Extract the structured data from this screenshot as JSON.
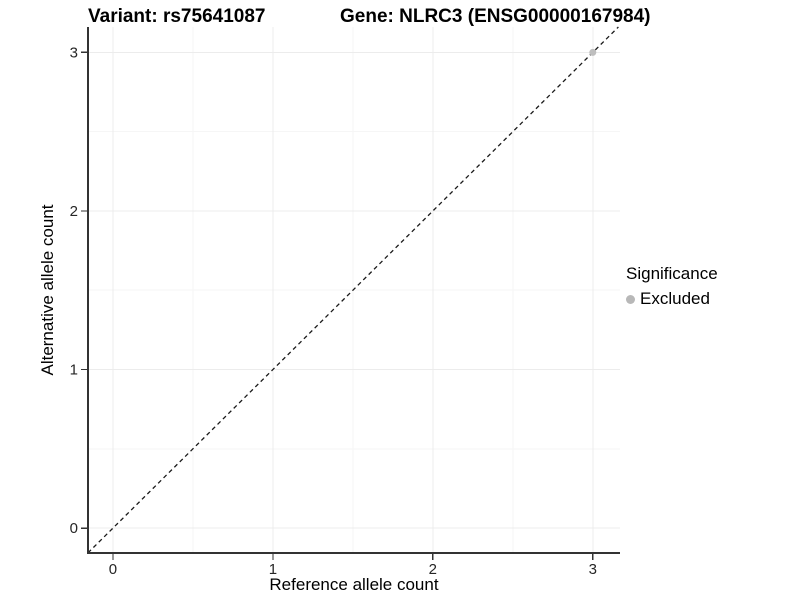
{
  "chart_data": {
    "type": "scatter",
    "titles": {
      "left": "Variant: rs75641087",
      "right": "Gene: NLRC3 (ENSG00000167984)"
    },
    "xlabel": "Reference allele count",
    "ylabel": "Alternative allele count",
    "xlim": [
      -0.156,
      3.17
    ],
    "ylim": [
      -0.157,
      3.16
    ],
    "x_ticks": [
      0,
      1,
      2,
      3
    ],
    "y_ticks": [
      0,
      1,
      2,
      3
    ],
    "grid": "major and minor, light gray on white",
    "identity_line": {
      "type": "abline",
      "slope": 1,
      "intercept": 0,
      "style": "dashed",
      "color": "#1a1a1a"
    },
    "series": [
      {
        "name": "Excluded",
        "color": "#bebebe",
        "marker": "circle",
        "points": [
          [
            3,
            3
          ]
        ]
      }
    ],
    "legend": {
      "title": "Significance",
      "position": "right",
      "items": [
        {
          "label": "Excluded",
          "color": "#b8b8b8",
          "marker": "circle"
        }
      ]
    }
  },
  "colors": {
    "background": "#ffffff",
    "grid_major": "#ececec",
    "grid_minor": "#f6f6f6",
    "axis_line": "#333333",
    "tick_text": "#262626",
    "point": "#bebebe"
  }
}
